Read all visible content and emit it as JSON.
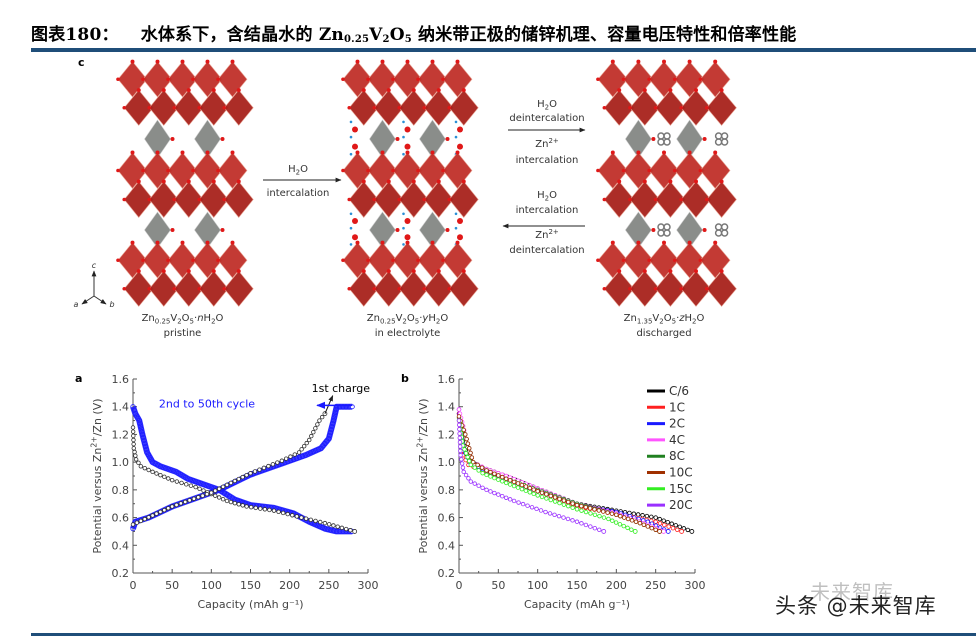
{
  "header": {
    "prefix": "图表180：",
    "text_before": "水体系下，含结晶水的 ",
    "formula": [
      "Zn",
      "0.25",
      "V",
      "2",
      "O",
      "5"
    ],
    "text_after": " 纳米带正极的储锌机理、容量电压特性和倍率性能",
    "rule_color": "#1f4e79"
  },
  "panel_c": {
    "label": "c",
    "axes": {
      "a": "a",
      "b": "b",
      "c": "c"
    },
    "structures": [
      {
        "formula": [
          [
            "Zn",
            ""
          ],
          [
            "0.25",
            "sub"
          ],
          [
            "V",
            ""
          ],
          [
            "2",
            "sub"
          ],
          [
            "O",
            ""
          ],
          [
            "5",
            "sub"
          ],
          [
            "·",
            ""
          ],
          [
            "n",
            "it"
          ],
          [
            "H",
            ""
          ],
          [
            "2",
            "sub"
          ],
          [
            "O",
            ""
          ]
        ],
        "caption": "pristine",
        "guest": "none"
      },
      {
        "formula": [
          [
            "Zn",
            ""
          ],
          [
            "0.25",
            "sub"
          ],
          [
            "V",
            ""
          ],
          [
            "2",
            "sub"
          ],
          [
            "O",
            ""
          ],
          [
            "5",
            "sub"
          ],
          [
            "·",
            ""
          ],
          [
            "y",
            "it"
          ],
          [
            "H",
            ""
          ],
          [
            "2",
            "sub"
          ],
          [
            "O",
            ""
          ]
        ],
        "caption": "in electrolyte",
        "guest": "water"
      },
      {
        "formula": [
          [
            "Zn",
            ""
          ],
          [
            "1.35",
            "sub"
          ],
          [
            "V",
            ""
          ],
          [
            "2",
            "sub"
          ],
          [
            "O",
            ""
          ],
          [
            "5",
            "sub"
          ],
          [
            "·",
            ""
          ],
          [
            "z",
            "it"
          ],
          [
            "H",
            ""
          ],
          [
            "2",
            "sub"
          ],
          [
            "O",
            ""
          ]
        ],
        "caption": "discharged",
        "guest": "zinc"
      }
    ],
    "arrows": [
      {
        "direction": "right",
        "above": [
          [
            "H",
            ""
          ],
          [
            "2",
            "sub"
          ],
          [
            "O",
            ""
          ]
        ],
        "below": "intercalation"
      },
      {
        "direction": "right",
        "above_1": [
          [
            "H",
            ""
          ],
          [
            "2",
            "sub"
          ],
          [
            "O",
            ""
          ]
        ],
        "above_2": "deintercalation",
        "below_1": [
          [
            "Zn",
            ""
          ],
          [
            "2+",
            "sup"
          ]
        ],
        "below_2": "intercalation"
      },
      {
        "direction": "left",
        "above_1": [
          [
            "H",
            ""
          ],
          [
            "2",
            "sub"
          ],
          [
            "O",
            ""
          ]
        ],
        "above_2": "intercalation",
        "below_1": [
          [
            "Zn",
            ""
          ],
          [
            "2+",
            "sup"
          ]
        ],
        "below_2": "deintercalation"
      }
    ],
    "colors": {
      "vanadate": "#c0302a",
      "zinc_layer": "#8a8d8a",
      "oxygen": "#e01818",
      "water_h": "#2a8fd6"
    }
  },
  "chart_data": [
    {
      "panel": "a",
      "type": "scatter",
      "xlabel": "Capacity (mAh g⁻¹)",
      "ylabel_parts": [
        [
          "Potential versus Zn",
          ""
        ],
        [
          "2+",
          "sup"
        ],
        [
          "/Zn (V)",
          ""
        ]
      ],
      "xlim": [
        0,
        300
      ],
      "ylim": [
        0.2,
        1.6
      ],
      "xticks": [
        0,
        50,
        100,
        150,
        200,
        250,
        300
      ],
      "yticks": [
        0.2,
        0.4,
        0.6,
        0.8,
        1.0,
        1.2,
        1.4,
        1.6
      ],
      "grid": false,
      "annotations": [
        {
          "text": "1st charge",
          "color": "#000000"
        },
        {
          "text": "2nd to 50th cycle",
          "color": "#1a1aff"
        }
      ],
      "series": [
        {
          "color": "#1a1aff",
          "style": "filled",
          "points": [
            [
              0,
              1.4
            ],
            [
              3,
              1.35
            ],
            [
              8,
              1.3
            ],
            [
              12,
              1.2
            ],
            [
              18,
              1.07
            ],
            [
              25,
              1.0
            ],
            [
              35,
              0.97
            ],
            [
              55,
              0.93
            ],
            [
              70,
              0.88
            ],
            [
              90,
              0.84
            ],
            [
              110,
              0.8
            ],
            [
              130,
              0.73
            ],
            [
              150,
              0.69
            ],
            [
              180,
              0.67
            ],
            [
              205,
              0.63
            ],
            [
              225,
              0.57
            ],
            [
              245,
              0.52
            ],
            [
              260,
              0.5
            ],
            [
              280,
              0.5
            ]
          ]
        },
        {
          "color": "#1a1aff",
          "style": "filled",
          "points": [
            [
              0,
              0.52
            ],
            [
              3,
              0.57
            ],
            [
              20,
              0.6
            ],
            [
              50,
              0.68
            ],
            [
              80,
              0.74
            ],
            [
              110,
              0.8
            ],
            [
              150,
              0.91
            ],
            [
              190,
              0.99
            ],
            [
              220,
              1.05
            ],
            [
              240,
              1.1
            ],
            [
              250,
              1.17
            ],
            [
              256,
              1.3
            ],
            [
              260,
              1.4
            ],
            [
              280,
              1.4
            ]
          ]
        },
        {
          "color": "#333333",
          "style": "open",
          "points": [
            [
              0,
              1.25
            ],
            [
              1,
              1.1
            ],
            [
              4,
              1.02
            ],
            [
              10,
              0.97
            ],
            [
              25,
              0.93
            ],
            [
              50,
              0.87
            ],
            [
              80,
              0.82
            ],
            [
              100,
              0.77
            ],
            [
              120,
              0.72
            ],
            [
              145,
              0.68
            ],
            [
              180,
              0.65
            ],
            [
              215,
              0.6
            ],
            [
              245,
              0.56
            ],
            [
              283,
              0.5
            ]
          ]
        },
        {
          "color": "#333333",
          "style": "open",
          "points": [
            [
              0,
              0.55
            ],
            [
              50,
              0.68
            ],
            [
              100,
              0.78
            ],
            [
              150,
              0.92
            ],
            [
              190,
              1.01
            ],
            [
              212,
              1.07
            ],
            [
              225,
              1.16
            ],
            [
              238,
              1.3
            ],
            [
              245,
              1.35
            ]
          ]
        }
      ]
    },
    {
      "panel": "b",
      "type": "scatter",
      "xlabel": "Capacity (mAh g⁻¹)",
      "ylabel_parts": [
        [
          "Potential versus Zn",
          ""
        ],
        [
          "2+",
          "sup"
        ],
        [
          "/Zn (V)",
          ""
        ]
      ],
      "xlim": [
        0,
        300
      ],
      "ylim": [
        0.2,
        1.6
      ],
      "xticks": [
        0,
        50,
        100,
        150,
        200,
        250,
        300
      ],
      "yticks": [
        0.2,
        0.4,
        0.6,
        0.8,
        1.0,
        1.2,
        1.4,
        1.6
      ],
      "grid": false,
      "legend": "top-right",
      "series": [
        {
          "name": "C/6",
          "color": "#000000",
          "points": [
            [
              0,
              1.35
            ],
            [
              5,
              1.15
            ],
            [
              12,
              1.02
            ],
            [
              25,
              0.97
            ],
            [
              50,
              0.92
            ],
            [
              100,
              0.81
            ],
            [
              150,
              0.7
            ],
            [
              200,
              0.65
            ],
            [
              250,
              0.6
            ],
            [
              296,
              0.5
            ]
          ]
        },
        {
          "name": "1C",
          "color": "#ff2020",
          "points": [
            [
              0,
              1.35
            ],
            [
              5,
              1.05
            ],
            [
              12,
              0.98
            ],
            [
              25,
              0.95
            ],
            [
              50,
              0.9
            ],
            [
              100,
              0.79
            ],
            [
              150,
              0.68
            ],
            [
              200,
              0.63
            ],
            [
              250,
              0.57
            ],
            [
              283,
              0.5
            ]
          ]
        },
        {
          "name": "2C",
          "color": "#1a1aff",
          "points": [
            [
              0,
              1.38
            ],
            [
              5,
              1.1
            ],
            [
              14,
              1.0
            ],
            [
              30,
              0.95
            ],
            [
              50,
              0.9
            ],
            [
              100,
              0.79
            ],
            [
              150,
              0.69
            ],
            [
              200,
              0.64
            ],
            [
              240,
              0.57
            ],
            [
              266,
              0.5
            ]
          ]
        },
        {
          "name": "4C",
          "color": "#ff55ff",
          "points": [
            [
              0,
              1.38
            ],
            [
              8,
              1.2
            ],
            [
              18,
              1.0
            ],
            [
              35,
              0.95
            ],
            [
              60,
              0.9
            ],
            [
              100,
              0.81
            ],
            [
              150,
              0.7
            ],
            [
              200,
              0.63
            ],
            [
              235,
              0.56
            ],
            [
              260,
              0.5
            ]
          ]
        },
        {
          "name": "8C",
          "color": "#208020",
          "points": [
            [
              0,
              1.32
            ],
            [
              8,
              1.2
            ],
            [
              18,
              1.0
            ],
            [
              35,
              0.94
            ],
            [
              60,
              0.88
            ],
            [
              100,
              0.8
            ],
            [
              150,
              0.7
            ],
            [
              200,
              0.62
            ],
            [
              230,
              0.56
            ],
            [
              255,
              0.5
            ]
          ]
        },
        {
          "name": "10C",
          "color": "#a03000",
          "points": [
            [
              0,
              1.33
            ],
            [
              8,
              1.2
            ],
            [
              18,
              1.0
            ],
            [
              35,
              0.94
            ],
            [
              60,
              0.88
            ],
            [
              100,
              0.79
            ],
            [
              150,
              0.69
            ],
            [
              200,
              0.62
            ],
            [
              230,
              0.56
            ],
            [
              255,
              0.5
            ]
          ]
        },
        {
          "name": "15C",
          "color": "#33ee22",
          "points": [
            [
              0,
              1.3
            ],
            [
              5,
              1.12
            ],
            [
              15,
              0.98
            ],
            [
              30,
              0.92
            ],
            [
              60,
              0.85
            ],
            [
              100,
              0.76
            ],
            [
              150,
              0.66
            ],
            [
              190,
              0.59
            ],
            [
              224,
              0.5
            ]
          ]
        },
        {
          "name": "20C",
          "color": "#9a30ff",
          "points": [
            [
              0,
              1.3
            ],
            [
              2,
              1.05
            ],
            [
              6,
              0.93
            ],
            [
              15,
              0.86
            ],
            [
              35,
              0.8
            ],
            [
              70,
              0.72
            ],
            [
              110,
              0.64
            ],
            [
              150,
              0.57
            ],
            [
              184,
              0.5
            ]
          ]
        }
      ]
    }
  ],
  "watermark": {
    "text": "头条 @未来智库",
    "ghost": "未来智库"
  }
}
